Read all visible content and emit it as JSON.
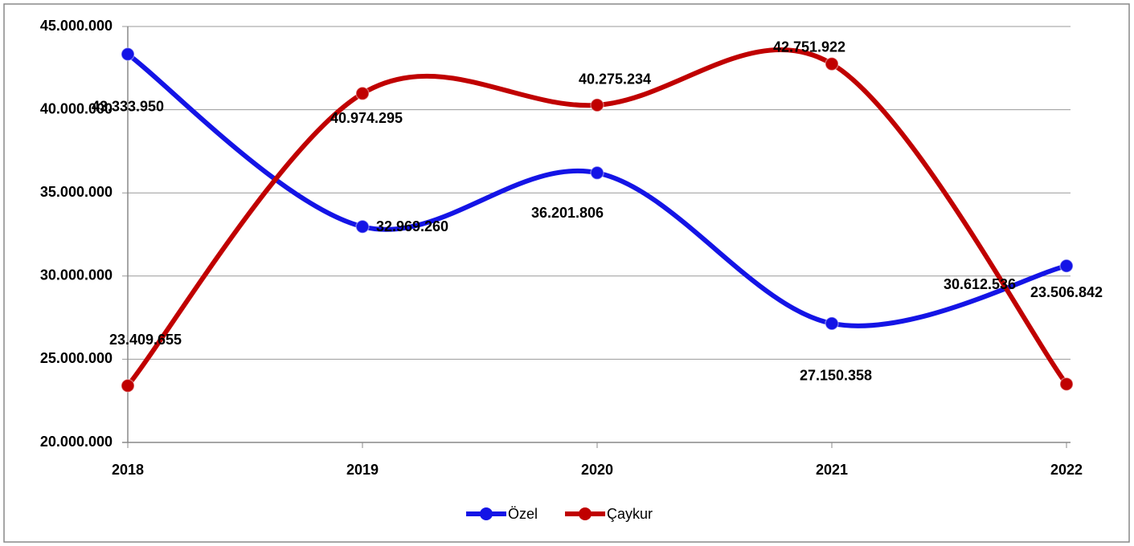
{
  "chart_data": {
    "type": "line",
    "categories": [
      "2018",
      "2019",
      "2020",
      "2021",
      "2022"
    ],
    "series": [
      {
        "name": "Özel",
        "color": "#1414e6",
        "values": [
          43333950,
          32969260,
          36201806,
          27150358,
          30612536
        ],
        "value_labels": [
          "43.333.950",
          "32.969.260",
          "36.201.806",
          "27.150.358",
          "30.612.536"
        ]
      },
      {
        "name": "Çaykur",
        "color": "#c00000",
        "values": [
          23409655,
          40974295,
          40275234,
          42751922,
          23506842
        ],
        "value_labels": [
          "23.409.655",
          "40.974.295",
          "40.275.234",
          "42.751.922",
          "23.506.842"
        ]
      }
    ],
    "ylim": [
      20000000,
      45000000
    ],
    "yticks": [
      {
        "value": 20000000,
        "label": "20.000.000"
      },
      {
        "value": 25000000,
        "label": "25.000.000"
      },
      {
        "value": 30000000,
        "label": "30.000.000"
      },
      {
        "value": 35000000,
        "label": "35.000.000"
      },
      {
        "value": 40000000,
        "label": "40.000.000"
      },
      {
        "value": 45000000,
        "label": "45.000.000"
      }
    ],
    "grid": true,
    "smooth": true,
    "legend": "bottom"
  }
}
